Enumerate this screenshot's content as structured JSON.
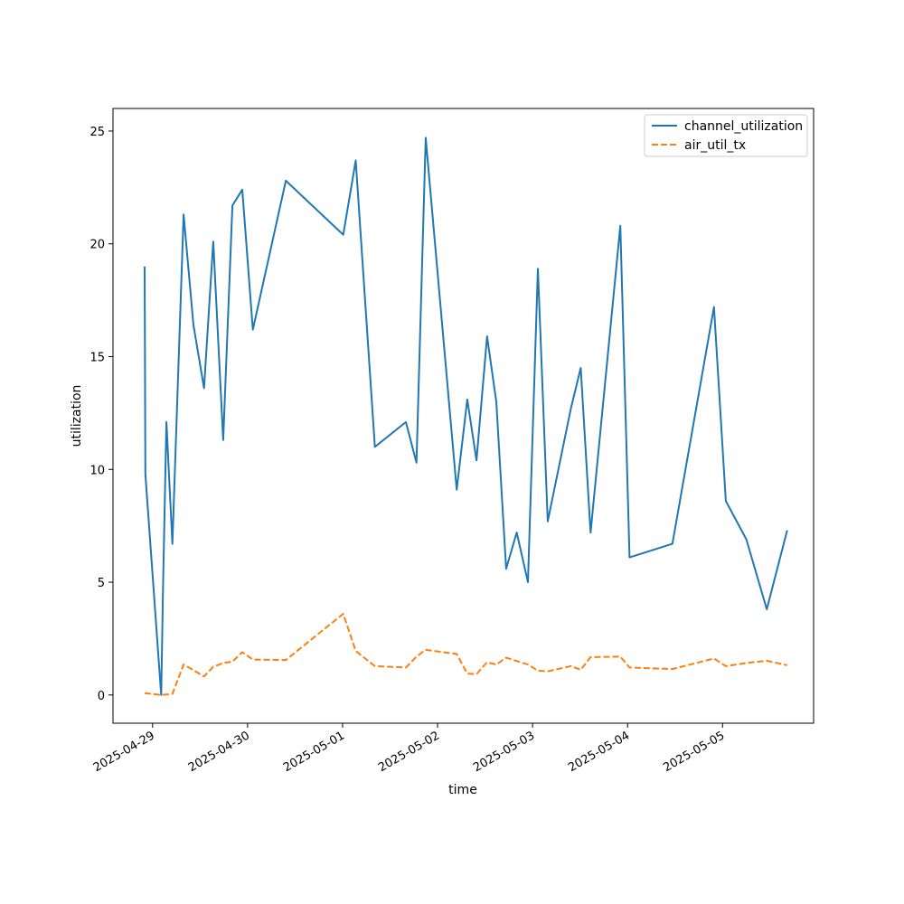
{
  "chart_data": {
    "type": "line",
    "xlabel": "time",
    "ylabel": "utilization",
    "x_axis_type": "date",
    "x_ticks": [
      "2025-04-29",
      "2025-04-30",
      "2025-05-01",
      "2025-05-02",
      "2025-05-03",
      "2025-05-04",
      "2025-05-05"
    ],
    "y_ticks": [
      0,
      5,
      10,
      15,
      20,
      25
    ],
    "xlim": [
      "2025-04-28 14:00",
      "2025-05-05 23:00"
    ],
    "ylim": [
      -1.25,
      26.0
    ],
    "grid": false,
    "legend_position": "top-right",
    "series": [
      {
        "name": "channel_utilization",
        "color": "#1f77b4",
        "line_style": "solid",
        "points": [
          [
            "2025-04-28 22:00",
            19.0
          ],
          [
            "2025-04-28 22:10",
            9.8
          ],
          [
            "2025-04-29 02:10",
            0.0
          ],
          [
            "2025-04-29 02:40",
            5.1
          ],
          [
            "2025-04-29 03:30",
            12.1
          ],
          [
            "2025-04-29 05:00",
            6.7
          ],
          [
            "2025-04-29 07:50",
            21.3
          ],
          [
            "2025-04-29 10:20",
            16.4
          ],
          [
            "2025-04-29 13:00",
            13.6
          ],
          [
            "2025-04-29 15:20",
            20.1
          ],
          [
            "2025-04-29 17:50",
            11.3
          ],
          [
            "2025-04-29 20:10",
            21.7
          ],
          [
            "2025-04-29 22:40",
            22.4
          ],
          [
            "2025-04-30 01:20",
            16.2
          ],
          [
            "2025-04-30 09:40",
            22.8
          ],
          [
            "2025-05-01 00:10",
            20.4
          ],
          [
            "2025-05-01 03:20",
            23.7
          ],
          [
            "2025-05-01 08:10",
            11.0
          ],
          [
            "2025-05-01 16:00",
            12.1
          ],
          [
            "2025-05-01 18:40",
            10.3
          ],
          [
            "2025-05-01 21:00",
            24.7
          ],
          [
            "2025-05-02 04:50",
            9.1
          ],
          [
            "2025-05-02 07:30",
            13.1
          ],
          [
            "2025-05-02 09:50",
            10.4
          ],
          [
            "2025-05-02 12:30",
            15.9
          ],
          [
            "2025-05-02 14:50",
            13.0
          ],
          [
            "2025-05-02 17:20",
            5.6
          ],
          [
            "2025-05-02 20:00",
            7.2
          ],
          [
            "2025-05-02 22:50",
            5.0
          ],
          [
            "2025-05-03 01:20",
            18.9
          ],
          [
            "2025-05-03 03:50",
            7.7
          ],
          [
            "2025-05-03 09:40",
            12.7
          ],
          [
            "2025-05-03 12:10",
            14.5
          ],
          [
            "2025-05-03 14:40",
            7.2
          ],
          [
            "2025-05-03 22:10",
            20.8
          ],
          [
            "2025-05-04 00:30",
            6.1
          ],
          [
            "2025-05-04 11:20",
            6.7
          ],
          [
            "2025-05-04 21:50",
            17.2
          ],
          [
            "2025-05-05 00:50",
            8.6
          ],
          [
            "2025-05-05 06:00",
            6.9
          ],
          [
            "2025-05-05 11:10",
            3.8
          ],
          [
            "2025-05-05 16:20",
            7.3
          ]
        ]
      },
      {
        "name": "air_util_tx",
        "color": "#ff7f0e",
        "line_style": "dashed",
        "points": [
          [
            "2025-04-28 22:00",
            0.08
          ],
          [
            "2025-04-29 02:10",
            0.0
          ],
          [
            "2025-04-29 05:00",
            0.05
          ],
          [
            "2025-04-29 07:50",
            1.35
          ],
          [
            "2025-04-29 10:20",
            1.1
          ],
          [
            "2025-04-29 13:00",
            0.82
          ],
          [
            "2025-04-29 15:20",
            1.25
          ],
          [
            "2025-04-29 17:50",
            1.42
          ],
          [
            "2025-04-29 20:10",
            1.48
          ],
          [
            "2025-04-29 22:40",
            1.9
          ],
          [
            "2025-04-30 01:20",
            1.57
          ],
          [
            "2025-04-30 09:40",
            1.55
          ],
          [
            "2025-05-01 00:10",
            3.6
          ],
          [
            "2025-05-01 03:20",
            1.95
          ],
          [
            "2025-05-01 08:10",
            1.28
          ],
          [
            "2025-05-01 16:00",
            1.22
          ],
          [
            "2025-05-01 18:40",
            1.7
          ],
          [
            "2025-05-01 21:00",
            2.0
          ],
          [
            "2025-05-02 04:50",
            1.82
          ],
          [
            "2025-05-02 07:30",
            0.95
          ],
          [
            "2025-05-02 09:50",
            0.92
          ],
          [
            "2025-05-02 12:30",
            1.45
          ],
          [
            "2025-05-02 14:50",
            1.35
          ],
          [
            "2025-05-02 17:20",
            1.65
          ],
          [
            "2025-05-02 22:50",
            1.35
          ],
          [
            "2025-05-03 01:20",
            1.08
          ],
          [
            "2025-05-03 03:50",
            1.05
          ],
          [
            "2025-05-03 09:40",
            1.28
          ],
          [
            "2025-05-03 12:10",
            1.12
          ],
          [
            "2025-05-03 14:40",
            1.68
          ],
          [
            "2025-05-03 22:10",
            1.7
          ],
          [
            "2025-05-04 00:30",
            1.22
          ],
          [
            "2025-05-04 11:20",
            1.15
          ],
          [
            "2025-05-04 21:50",
            1.62
          ],
          [
            "2025-05-05 00:50",
            1.28
          ],
          [
            "2025-05-05 06:00",
            1.42
          ],
          [
            "2025-05-05 11:10",
            1.52
          ],
          [
            "2025-05-05 16:20",
            1.32
          ]
        ]
      }
    ]
  }
}
